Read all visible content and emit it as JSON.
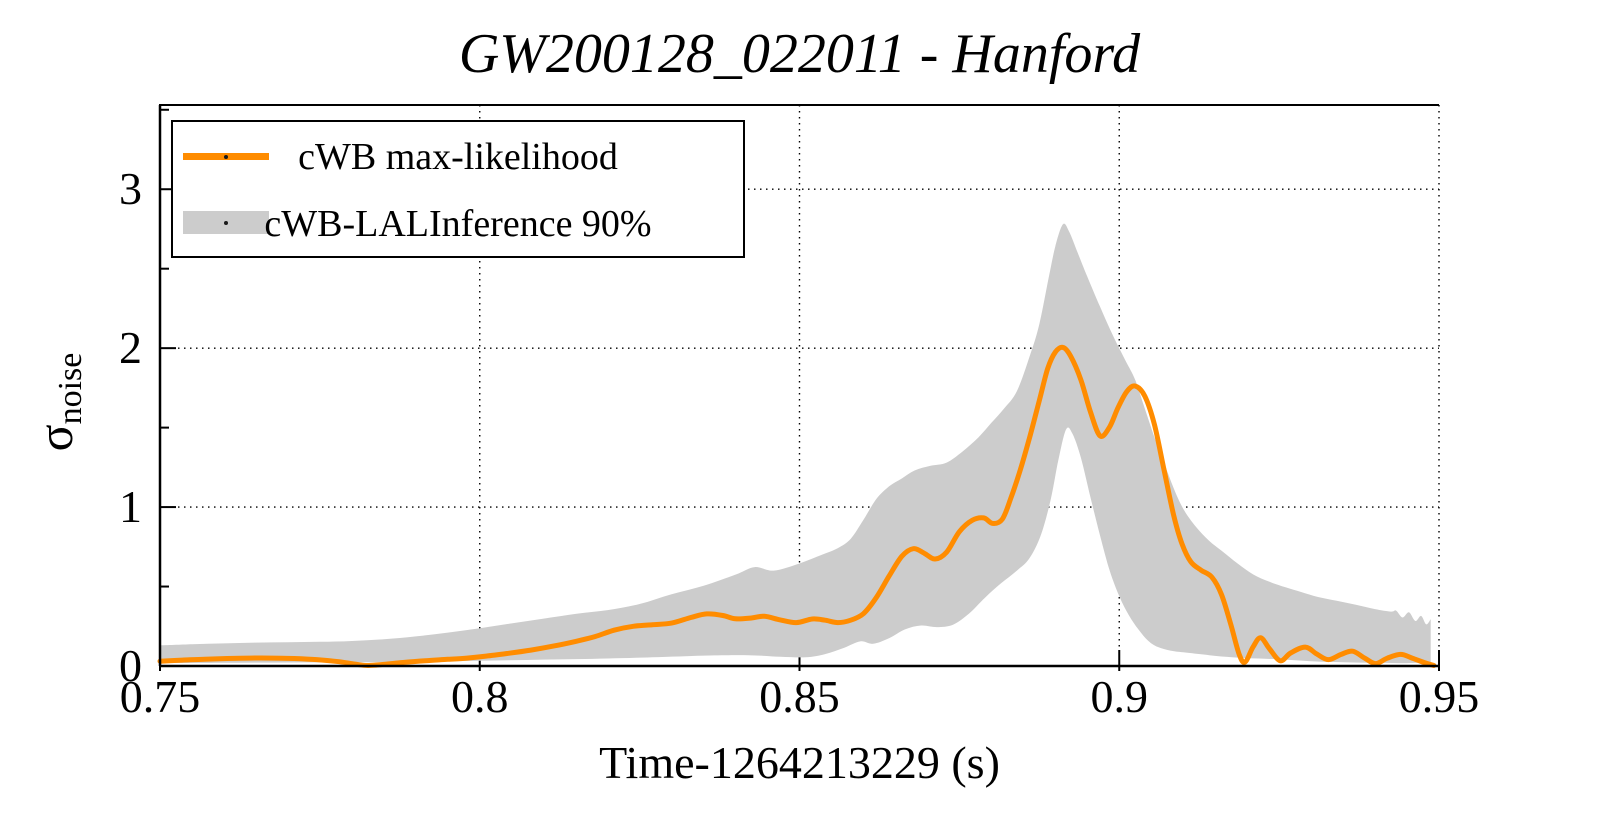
{
  "page": {
    "background": "#ffffff"
  },
  "chart_data": {
    "type": "line",
    "title": "GW200128_022011 - Hanford",
    "xlabel": "Time-1264213229 (s)",
    "ylabel": {
      "symbol": "σ",
      "subscript": "noise"
    },
    "xlim": [
      0.75,
      0.95
    ],
    "ylim": [
      0,
      3.53
    ],
    "grid": true,
    "legend_position": "top-left",
    "colors": {
      "line": "#ff8c00",
      "band": "#cccccc",
      "frame": "#000000"
    },
    "x_ticks": [
      {
        "value": 0.75,
        "label": "0.75"
      },
      {
        "value": 0.8,
        "label": "0.8"
      },
      {
        "value": 0.85,
        "label": "0.85"
      },
      {
        "value": 0.9,
        "label": "0.9"
      },
      {
        "value": 0.95,
        "label": "0.95"
      }
    ],
    "y_ticks": [
      {
        "value": 0,
        "label": "0"
      },
      {
        "value": 1,
        "label": "1"
      },
      {
        "value": 2,
        "label": "2"
      },
      {
        "value": 3,
        "label": "3"
      }
    ],
    "y_minor_ticks": [
      0.5,
      1.5,
      2.5,
      3.5
    ],
    "x_gridlines": [
      0.8,
      0.85,
      0.9,
      0.95
    ],
    "y_gridlines": [
      1,
      2,
      3
    ],
    "legend": [
      {
        "label": "cWB max-likelihood",
        "type": "line",
        "color": "#ff8c00"
      },
      {
        "label": "cWB-LALInference 90%",
        "type": "band",
        "color": "#cccccc"
      }
    ],
    "series": [
      {
        "name": "cWB max-likelihood",
        "type": "line",
        "color": "#ff8c00",
        "points": [
          [
            0.75,
            0.03
          ],
          [
            0.7535,
            0.037
          ],
          [
            0.757,
            0.043
          ],
          [
            0.7605,
            0.047
          ],
          [
            0.764,
            0.05
          ],
          [
            0.7675,
            0.05
          ],
          [
            0.771,
            0.047
          ],
          [
            0.7745,
            0.04
          ],
          [
            0.778,
            0.027
          ],
          [
            0.7805,
            0.012
          ],
          [
            0.7825,
            0.003
          ],
          [
            0.785,
            0.01
          ],
          [
            0.788,
            0.022
          ],
          [
            0.7915,
            0.033
          ],
          [
            0.795,
            0.042
          ],
          [
            0.798,
            0.05
          ],
          [
            0.801,
            0.062
          ],
          [
            0.8045,
            0.08
          ],
          [
            0.808,
            0.1
          ],
          [
            0.8115,
            0.125
          ],
          [
            0.815,
            0.155
          ],
          [
            0.818,
            0.185
          ],
          [
            0.821,
            0.225
          ],
          [
            0.824,
            0.25
          ],
          [
            0.827,
            0.26
          ],
          [
            0.83,
            0.27
          ],
          [
            0.833,
            0.305
          ],
          [
            0.8355,
            0.328
          ],
          [
            0.838,
            0.318
          ],
          [
            0.84,
            0.297
          ],
          [
            0.8425,
            0.302
          ],
          [
            0.8445,
            0.313
          ],
          [
            0.847,
            0.29
          ],
          [
            0.8495,
            0.273
          ],
          [
            0.852,
            0.296
          ],
          [
            0.854,
            0.288
          ],
          [
            0.856,
            0.273
          ],
          [
            0.858,
            0.288
          ],
          [
            0.86,
            0.33
          ],
          [
            0.862,
            0.43
          ],
          [
            0.864,
            0.565
          ],
          [
            0.866,
            0.69
          ],
          [
            0.8678,
            0.738
          ],
          [
            0.8695,
            0.71
          ],
          [
            0.8712,
            0.673
          ],
          [
            0.873,
            0.716
          ],
          [
            0.875,
            0.845
          ],
          [
            0.877,
            0.917
          ],
          [
            0.8788,
            0.932
          ],
          [
            0.8802,
            0.897
          ],
          [
            0.8817,
            0.923
          ],
          [
            0.883,
            1.05
          ],
          [
            0.8845,
            1.23
          ],
          [
            0.886,
            1.44
          ],
          [
            0.8875,
            1.67
          ],
          [
            0.8888,
            1.87
          ],
          [
            0.89,
            1.975
          ],
          [
            0.8912,
            2.005
          ],
          [
            0.8924,
            1.95
          ],
          [
            0.894,
            1.8
          ],
          [
            0.8955,
            1.598
          ],
          [
            0.897,
            1.448
          ],
          [
            0.8985,
            1.505
          ],
          [
            0.8998,
            1.625
          ],
          [
            0.9012,
            1.728
          ],
          [
            0.9025,
            1.762
          ],
          [
            0.904,
            1.698
          ],
          [
            0.9055,
            1.52
          ],
          [
            0.907,
            1.235
          ],
          [
            0.9085,
            0.95
          ],
          [
            0.9098,
            0.77
          ],
          [
            0.9112,
            0.655
          ],
          [
            0.9128,
            0.603
          ],
          [
            0.9145,
            0.558
          ],
          [
            0.916,
            0.448
          ],
          [
            0.9175,
            0.253
          ],
          [
            0.9188,
            0.068
          ],
          [
            0.9197,
            0.025
          ],
          [
            0.9209,
            0.118
          ],
          [
            0.9221,
            0.178
          ],
          [
            0.9235,
            0.108
          ],
          [
            0.9252,
            0.033
          ],
          [
            0.9268,
            0.082
          ],
          [
            0.9291,
            0.119
          ],
          [
            0.9309,
            0.075
          ],
          [
            0.9327,
            0.04
          ],
          [
            0.9347,
            0.073
          ],
          [
            0.9365,
            0.093
          ],
          [
            0.9384,
            0.049
          ],
          [
            0.9401,
            0.015
          ],
          [
            0.9419,
            0.049
          ],
          [
            0.944,
            0.073
          ],
          [
            0.9458,
            0.05
          ],
          [
            0.9478,
            0.02
          ],
          [
            0.9492,
            0.003
          ]
        ]
      },
      {
        "name": "cWB-LALInference 90%",
        "type": "band",
        "color": "#cccccc",
        "top": [
          [
            0.75,
            0.13
          ],
          [
            0.755,
            0.137
          ],
          [
            0.76,
            0.142
          ],
          [
            0.765,
            0.147
          ],
          [
            0.77,
            0.15
          ],
          [
            0.775,
            0.152
          ],
          [
            0.78,
            0.157
          ],
          [
            0.785,
            0.168
          ],
          [
            0.79,
            0.186
          ],
          [
            0.795,
            0.21
          ],
          [
            0.8,
            0.238
          ],
          [
            0.805,
            0.268
          ],
          [
            0.81,
            0.298
          ],
          [
            0.815,
            0.328
          ],
          [
            0.82,
            0.352
          ],
          [
            0.825,
            0.39
          ],
          [
            0.83,
            0.452
          ],
          [
            0.835,
            0.505
          ],
          [
            0.84,
            0.575
          ],
          [
            0.843,
            0.622
          ],
          [
            0.846,
            0.6
          ],
          [
            0.85,
            0.645
          ],
          [
            0.8535,
            0.7
          ],
          [
            0.856,
            0.742
          ],
          [
            0.858,
            0.8
          ],
          [
            0.86,
            0.92
          ],
          [
            0.862,
            1.05
          ],
          [
            0.864,
            1.13
          ],
          [
            0.866,
            1.18
          ],
          [
            0.868,
            1.23
          ],
          [
            0.8705,
            1.26
          ],
          [
            0.873,
            1.28
          ],
          [
            0.8755,
            1.35
          ],
          [
            0.878,
            1.44
          ],
          [
            0.88,
            1.53
          ],
          [
            0.882,
            1.62
          ],
          [
            0.884,
            1.73
          ],
          [
            0.886,
            1.95
          ],
          [
            0.8875,
            2.15
          ],
          [
            0.889,
            2.45
          ],
          [
            0.89,
            2.64
          ],
          [
            0.8912,
            2.78
          ],
          [
            0.8922,
            2.73
          ],
          [
            0.8935,
            2.6
          ],
          [
            0.895,
            2.45
          ],
          [
            0.897,
            2.26
          ],
          [
            0.899,
            2.08
          ],
          [
            0.901,
            1.92
          ],
          [
            0.9025,
            1.8
          ],
          [
            0.904,
            1.62
          ],
          [
            0.9055,
            1.44
          ],
          [
            0.907,
            1.28
          ],
          [
            0.9085,
            1.12
          ],
          [
            0.91,
            0.99
          ],
          [
            0.912,
            0.875
          ],
          [
            0.914,
            0.79
          ],
          [
            0.916,
            0.725
          ],
          [
            0.9185,
            0.645
          ],
          [
            0.921,
            0.575
          ],
          [
            0.9235,
            0.53
          ],
          [
            0.926,
            0.495
          ],
          [
            0.9285,
            0.465
          ],
          [
            0.931,
            0.435
          ],
          [
            0.934,
            0.41
          ],
          [
            0.937,
            0.385
          ],
          [
            0.94,
            0.358
          ],
          [
            0.9425,
            0.342
          ],
          [
            0.9433,
            0.348
          ],
          [
            0.9443,
            0.305
          ],
          [
            0.9453,
            0.338
          ],
          [
            0.9463,
            0.283
          ],
          [
            0.9472,
            0.315
          ],
          [
            0.948,
            0.262
          ],
          [
            0.9487,
            0.295
          ]
        ],
        "bottom": [
          [
            0.75,
            0.018
          ],
          [
            0.76,
            0.02
          ],
          [
            0.77,
            0.022
          ],
          [
            0.78,
            0.023
          ],
          [
            0.79,
            0.027
          ],
          [
            0.8,
            0.033
          ],
          [
            0.81,
            0.04
          ],
          [
            0.82,
            0.047
          ],
          [
            0.828,
            0.056
          ],
          [
            0.836,
            0.066
          ],
          [
            0.842,
            0.068
          ],
          [
            0.847,
            0.058
          ],
          [
            0.851,
            0.055
          ],
          [
            0.854,
            0.075
          ],
          [
            0.857,
            0.115
          ],
          [
            0.8595,
            0.155
          ],
          [
            0.8615,
            0.14
          ],
          [
            0.864,
            0.175
          ],
          [
            0.8665,
            0.23
          ],
          [
            0.869,
            0.255
          ],
          [
            0.8715,
            0.245
          ],
          [
            0.874,
            0.26
          ],
          [
            0.8765,
            0.33
          ],
          [
            0.879,
            0.43
          ],
          [
            0.8815,
            0.52
          ],
          [
            0.884,
            0.6
          ],
          [
            0.886,
            0.68
          ],
          [
            0.8878,
            0.83
          ],
          [
            0.8893,
            1.05
          ],
          [
            0.8905,
            1.3
          ],
          [
            0.8917,
            1.49
          ],
          [
            0.8927,
            1.46
          ],
          [
            0.894,
            1.31
          ],
          [
            0.8955,
            1.06
          ],
          [
            0.897,
            0.82
          ],
          [
            0.8985,
            0.6
          ],
          [
            0.9,
            0.44
          ],
          [
            0.9015,
            0.32
          ],
          [
            0.903,
            0.23
          ],
          [
            0.9045,
            0.16
          ],
          [
            0.906,
            0.12
          ],
          [
            0.908,
            0.097
          ],
          [
            0.91,
            0.086
          ],
          [
            0.913,
            0.073
          ],
          [
            0.916,
            0.06
          ],
          [
            0.92,
            0.05
          ],
          [
            0.925,
            0.042
          ],
          [
            0.93,
            0.03
          ],
          [
            0.935,
            0.024
          ],
          [
            0.94,
            0.02
          ],
          [
            0.945,
            0.018
          ],
          [
            0.9487,
            0.025
          ]
        ]
      }
    ]
  }
}
